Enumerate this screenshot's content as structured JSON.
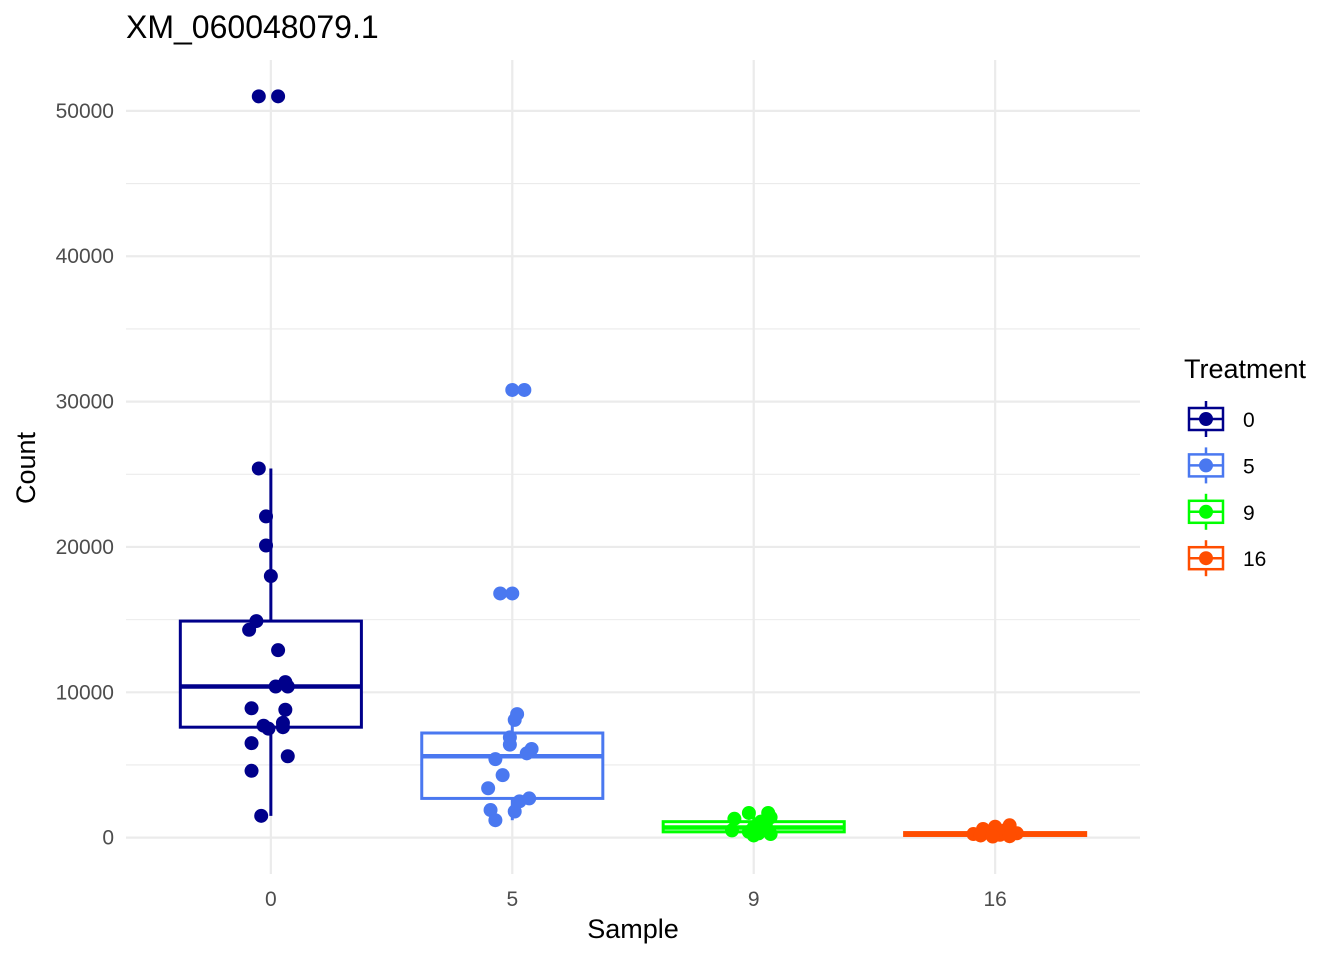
{
  "chart_data": {
    "type": "box",
    "title": "XM_060048079.1",
    "xlabel": "Sample",
    "ylabel": "Count",
    "categories": [
      "0",
      "5",
      "9",
      "16"
    ],
    "ylim": [
      -2500,
      53500
    ],
    "yticks": [
      0,
      10000,
      20000,
      30000,
      40000,
      50000
    ],
    "grid": true,
    "legend": {
      "title": "Treatment",
      "position": "right",
      "entries": [
        "0",
        "5",
        "9",
        "16"
      ]
    },
    "series": [
      {
        "name": "0",
        "color": "#00008b",
        "box": {
          "lower_whisker": 1500,
          "q1": 7600,
          "median": 10400,
          "q3": 14900,
          "upper_whisker": 25400
        },
        "points": [
          {
            "jitter": -0.05,
            "y": 51000
          },
          {
            "jitter": 0.03,
            "y": 51000
          },
          {
            "jitter": -0.05,
            "y": 25400
          },
          {
            "jitter": -0.02,
            "y": 22100
          },
          {
            "jitter": -0.02,
            "y": 20100
          },
          {
            "jitter": 0.0,
            "y": 18000
          },
          {
            "jitter": -0.06,
            "y": 14900
          },
          {
            "jitter": -0.09,
            "y": 14300
          },
          {
            "jitter": 0.03,
            "y": 12900
          },
          {
            "jitter": 0.06,
            "y": 10700
          },
          {
            "jitter": 0.02,
            "y": 10400
          },
          {
            "jitter": 0.07,
            "y": 10400
          },
          {
            "jitter": -0.08,
            "y": 8900
          },
          {
            "jitter": 0.06,
            "y": 8800
          },
          {
            "jitter": 0.05,
            "y": 7900
          },
          {
            "jitter": -0.03,
            "y": 7700
          },
          {
            "jitter": 0.05,
            "y": 7600
          },
          {
            "jitter": -0.01,
            "y": 7500
          },
          {
            "jitter": -0.08,
            "y": 6500
          },
          {
            "jitter": 0.07,
            "y": 5600
          },
          {
            "jitter": -0.08,
            "y": 4600
          },
          {
            "jitter": -0.04,
            "y": 1500
          }
        ]
      },
      {
        "name": "5",
        "color": "#4a78f0",
        "box": {
          "lower_whisker": 1200,
          "q1": 2700,
          "median": 5600,
          "q3": 7200,
          "upper_whisker": 8500
        },
        "points": [
          {
            "jitter": 0.0,
            "y": 30800
          },
          {
            "jitter": 0.05,
            "y": 30800
          },
          {
            "jitter": -0.05,
            "y": 16800
          },
          {
            "jitter": 0.0,
            "y": 16800
          },
          {
            "jitter": 0.02,
            "y": 8500
          },
          {
            "jitter": 0.01,
            "y": 8100
          },
          {
            "jitter": -0.01,
            "y": 6900
          },
          {
            "jitter": -0.01,
            "y": 6400
          },
          {
            "jitter": 0.08,
            "y": 6100
          },
          {
            "jitter": 0.06,
            "y": 5800
          },
          {
            "jitter": -0.07,
            "y": 5400
          },
          {
            "jitter": -0.04,
            "y": 4300
          },
          {
            "jitter": -0.1,
            "y": 3400
          },
          {
            "jitter": 0.07,
            "y": 2700
          },
          {
            "jitter": 0.03,
            "y": 2500
          },
          {
            "jitter": -0.09,
            "y": 1900
          },
          {
            "jitter": 0.01,
            "y": 1800
          },
          {
            "jitter": -0.07,
            "y": 1200
          }
        ]
      },
      {
        "name": "9",
        "color": "#00ff00",
        "box": {
          "lower_whisker": 150,
          "q1": 400,
          "median": 700,
          "q3": 1100,
          "upper_whisker": 1800
        },
        "points": [
          {
            "jitter": -0.02,
            "y": 1700
          },
          {
            "jitter": 0.06,
            "y": 1700
          },
          {
            "jitter": 0.07,
            "y": 1400
          },
          {
            "jitter": -0.08,
            "y": 1300
          },
          {
            "jitter": 0.03,
            "y": 1100
          },
          {
            "jitter": 0.05,
            "y": 900
          },
          {
            "jitter": 0.0,
            "y": 700
          },
          {
            "jitter": -0.09,
            "y": 500
          },
          {
            "jitter": -0.02,
            "y": 400
          },
          {
            "jitter": 0.02,
            "y": 300
          },
          {
            "jitter": 0.07,
            "y": 250
          },
          {
            "jitter": 0.0,
            "y": 150
          }
        ]
      },
      {
        "name": "16",
        "color": "#ff4d00",
        "box": {
          "lower_whisker": 50,
          "q1": 150,
          "median": 250,
          "q3": 350,
          "upper_whisker": 500
        },
        "points": [
          {
            "jitter": 0.06,
            "y": 850
          },
          {
            "jitter": 0.0,
            "y": 750
          },
          {
            "jitter": -0.05,
            "y": 600
          },
          {
            "jitter": 0.04,
            "y": 500
          },
          {
            "jitter": -0.03,
            "y": 400
          },
          {
            "jitter": 0.09,
            "y": 300
          },
          {
            "jitter": -0.09,
            "y": 250
          },
          {
            "jitter": 0.02,
            "y": 200
          },
          {
            "jitter": -0.06,
            "y": 150
          },
          {
            "jitter": 0.06,
            "y": 100
          },
          {
            "jitter": -0.01,
            "y": 80
          }
        ]
      }
    ]
  }
}
